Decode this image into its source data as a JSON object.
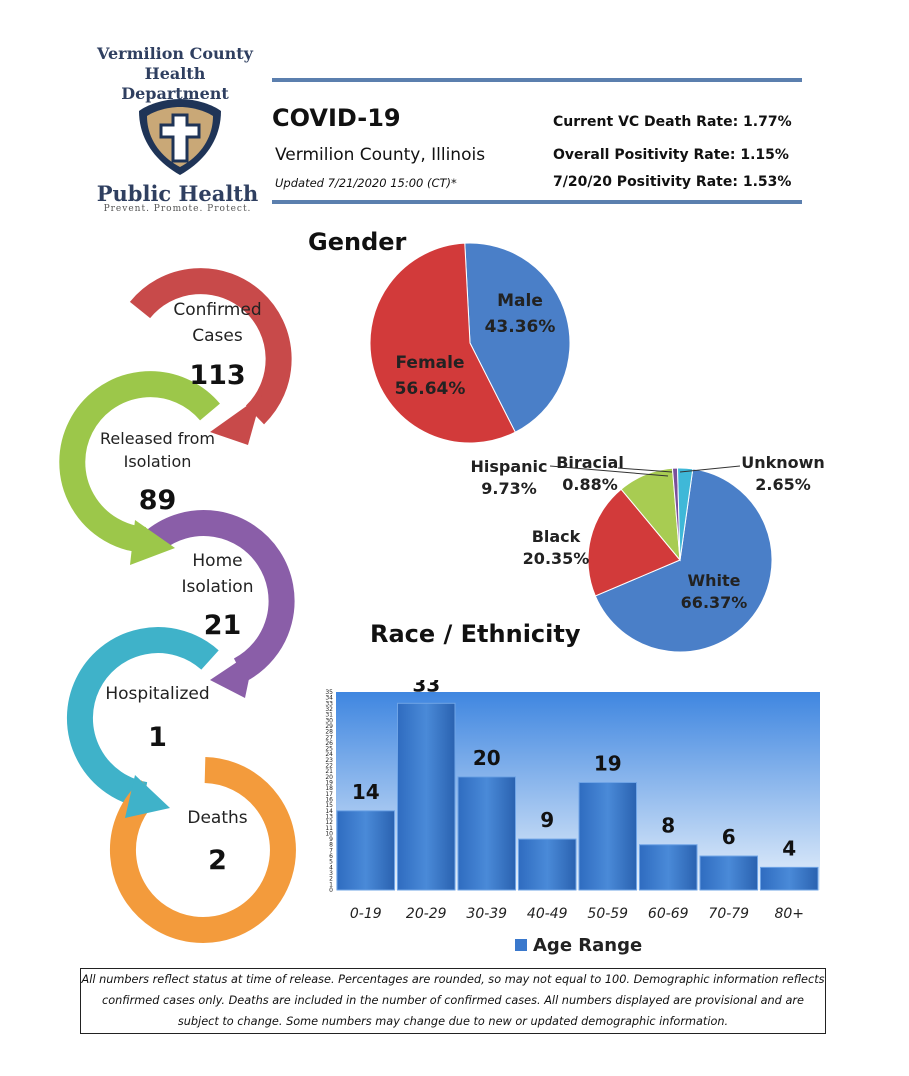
{
  "header": {
    "org_name_line1": "Vermilion County",
    "org_name_line2": "Health Department",
    "logo_text": "Public Health",
    "logo_tagline": "Prevent. Promote. Protect.",
    "title": "COVID-19",
    "location": "Vermilion County, Illinois",
    "updated": "Updated 7/21/2020 15:00 (CT)*",
    "stats": [
      {
        "label": "Current VC Death Rate:",
        "value": "1.77%"
      },
      {
        "label": "Overall Positivity Rate:",
        "value": "1.15%"
      },
      {
        "label": "7/20/20  Positivity Rate:",
        "value": "1.53%"
      }
    ]
  },
  "flow": [
    {
      "label1": "Confirmed",
      "label2": "Cases",
      "value": "113",
      "color": "#c84a4a"
    },
    {
      "label1": "Released from",
      "label2": "Isolation",
      "value": "89",
      "color": "#9cc74a"
    },
    {
      "label1": "Home",
      "label2": "Isolation",
      "value": "21",
      "color": "#8a5ea8"
    },
    {
      "label1": "Hospitalized",
      "label2": "",
      "value": "1",
      "color": "#3fb2c9"
    },
    {
      "label1": "Deaths",
      "label2": "",
      "value": "2",
      "color": "#f39b3c"
    }
  ],
  "chart_data": [
    {
      "type": "pie",
      "title": "Gender",
      "labels": [
        "Male",
        "Female"
      ],
      "values": [
        43.36,
        56.64
      ],
      "display": [
        "43.36%",
        "56.64%"
      ],
      "colors": [
        "#4a7fc8",
        "#d23a3a"
      ]
    },
    {
      "type": "pie",
      "title": "Race / Ethnicity",
      "labels": [
        "White",
        "Black",
        "Hispanic",
        "Biracial",
        "Unknown"
      ],
      "values": [
        66.37,
        20.35,
        9.73,
        0.88,
        2.65
      ],
      "display": [
        "66.37%",
        "20.35%",
        "9.73%",
        "0.88%",
        "2.65%"
      ],
      "colors": [
        "#4a7fc8",
        "#d23a3a",
        "#a8cc52",
        "#7a4f9a",
        "#3fb8d8"
      ]
    },
    {
      "type": "bar",
      "title": "",
      "categories": [
        "0-19",
        "20-29",
        "30-39",
        "40-49",
        "50-59",
        "60-69",
        "70-79",
        "80+"
      ],
      "values": [
        14,
        33,
        20,
        9,
        19,
        8,
        6,
        4
      ],
      "legend": "Age Range",
      "ylim": [
        0,
        35
      ],
      "ytick_step": 1
    }
  ],
  "footnote": "All numbers reflect status at time of release.  Percentages are rounded, so may not equal to 100.  Demographic information reflects confirmed cases only.  Deaths are included in the number of confirmed cases.  All numbers displayed are provisional and are subject to change. Some numbers may change due to new or updated demographic information."
}
